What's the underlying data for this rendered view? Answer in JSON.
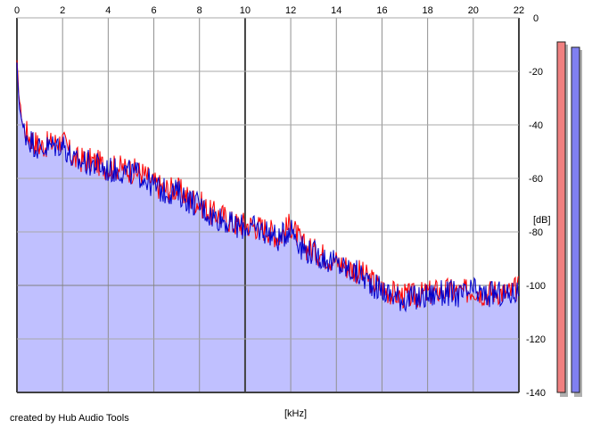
{
  "chart_data": {
    "type": "area",
    "xlabel": "[kHz]",
    "ylabel": "[dB]",
    "xlim": [
      0,
      22
    ],
    "ylim": [
      -140,
      0
    ],
    "x_ticks": [
      0,
      2,
      4,
      6,
      8,
      10,
      12,
      14,
      16,
      18,
      20,
      22
    ],
    "y_ticks": [
      0,
      -20,
      -40,
      -60,
      -80,
      -100,
      -120,
      -140
    ],
    "grid": true,
    "x": [
      0,
      0.1,
      0.25,
      0.5,
      0.75,
      1,
      1.5,
      2,
      2.5,
      3,
      3.5,
      4,
      4.5,
      5,
      5.5,
      6,
      6.5,
      7,
      7.5,
      8,
      8.5,
      9,
      9.5,
      10,
      10.5,
      11,
      11.5,
      12,
      12.5,
      13,
      13.5,
      14,
      14.5,
      15,
      15.5,
      16,
      16.5,
      17,
      17.5,
      18,
      18.5,
      19,
      19.5,
      20,
      20.5,
      21,
      21.5,
      22
    ],
    "series": [
      {
        "color": "#ff0000",
        "values": [
          -17,
          -30,
          -40,
          -44,
          -46,
          -48,
          -47,
          -46,
          -53,
          -53,
          -54,
          -56,
          -56,
          -57,
          -58,
          -62,
          -64,
          -64,
          -67,
          -69,
          -73,
          -74,
          -77,
          -77,
          -78,
          -79,
          -82,
          -77,
          -85,
          -87,
          -89,
          -91,
          -93,
          -95,
          -98,
          -101,
          -103,
          -104,
          -104,
          -103,
          -102,
          -102,
          -103,
          -101,
          -103,
          -102,
          -103,
          -101
        ]
      },
      {
        "color": "#0000cc",
        "values": [
          -18,
          -32,
          -41,
          -45,
          -47,
          -49,
          -48,
          -47,
          -54,
          -54,
          -55,
          -57,
          -57,
          -58,
          -59,
          -63,
          -65,
          -65,
          -68,
          -70,
          -74,
          -75,
          -78,
          -78,
          -79,
          -80,
          -83,
          -78,
          -86,
          -88,
          -90,
          -92,
          -94,
          -96,
          -99,
          -102,
          -104,
          -105,
          -105,
          -104,
          -103,
          -103,
          -104,
          -102,
          -104,
          -103,
          -104,
          -102
        ]
      }
    ]
  },
  "meters": [
    {
      "color": "#f08080",
      "level_db": -9
    },
    {
      "color": "#8080f0",
      "level_db": -11
    }
  ],
  "credit": "created by Hub Audio Tools"
}
